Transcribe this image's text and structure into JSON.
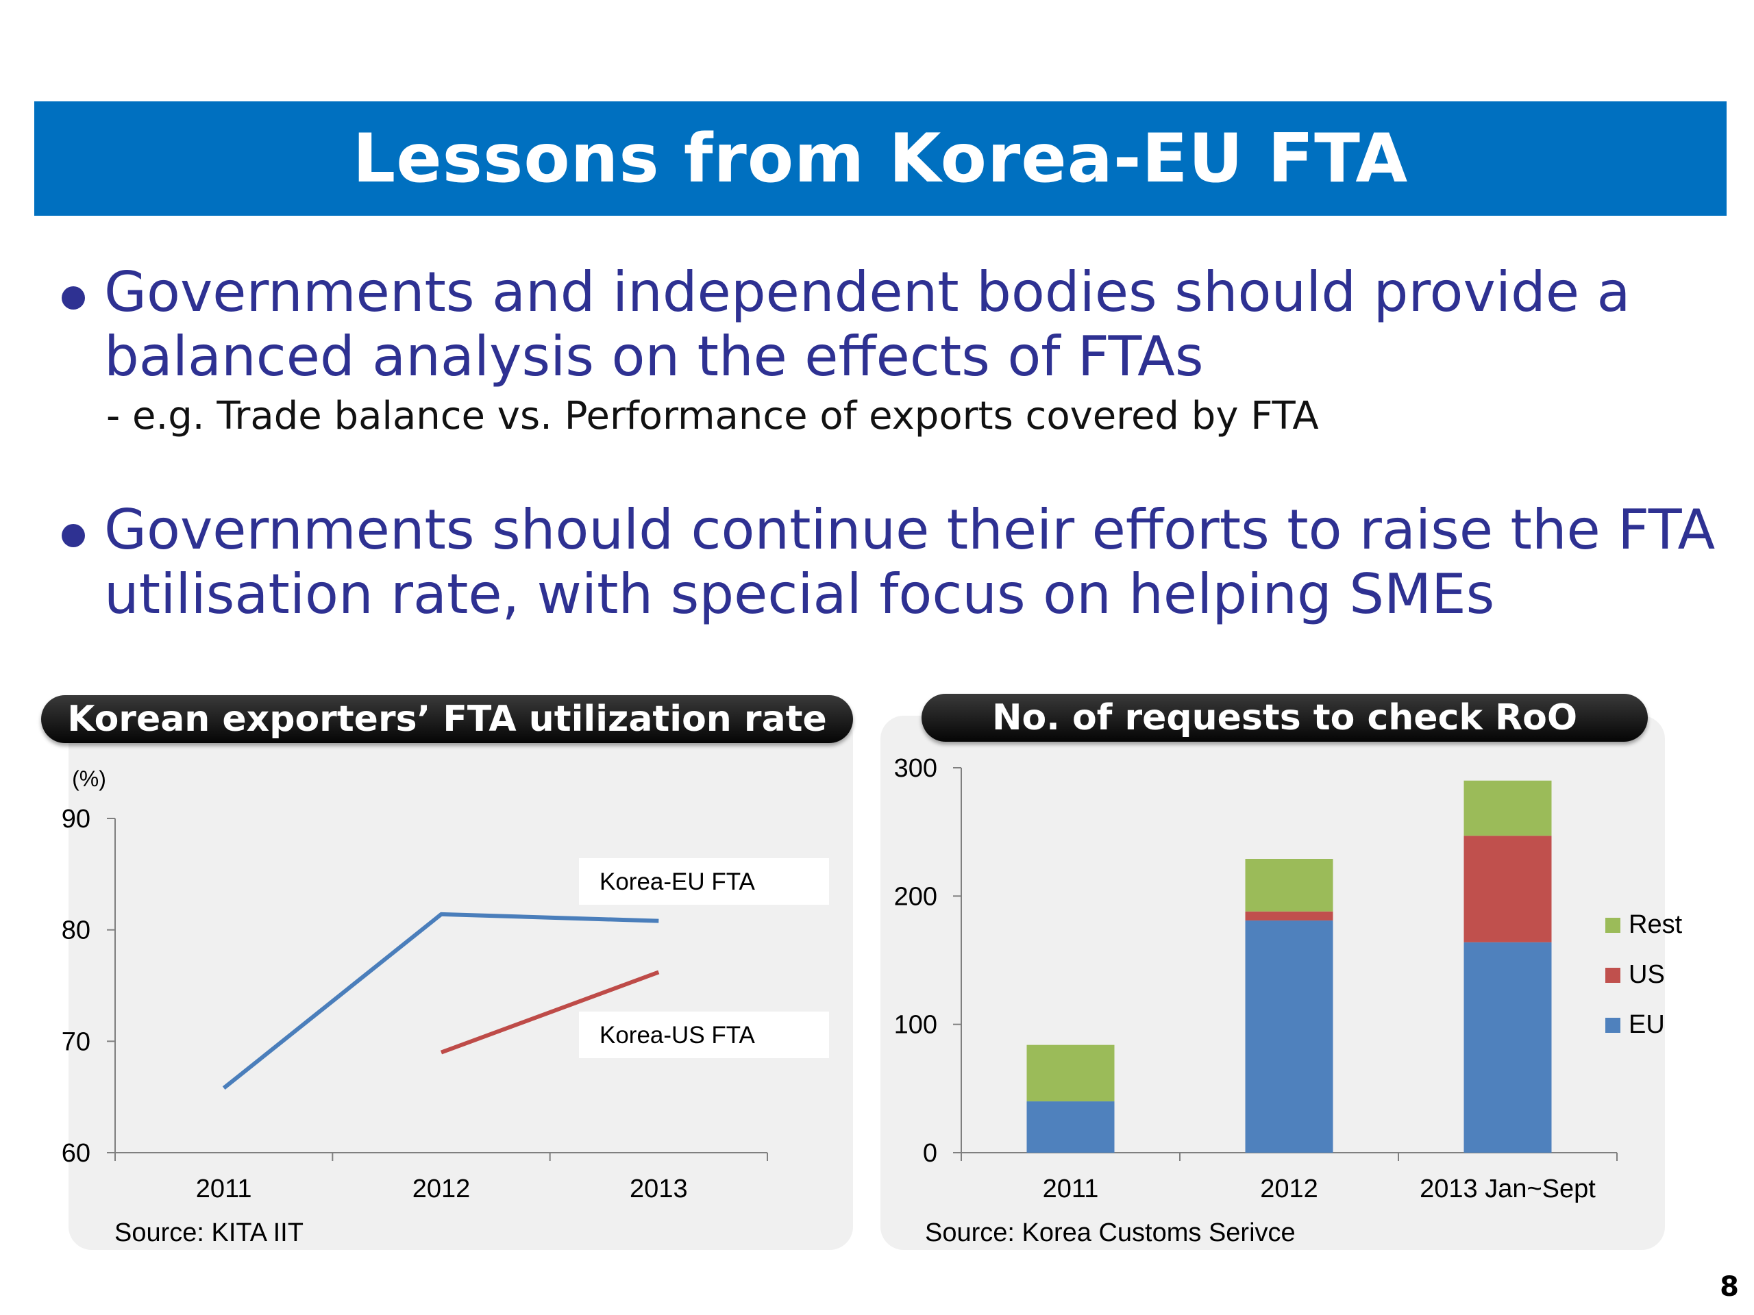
{
  "slide": {
    "title": "Lessons from Korea-EU FTA",
    "bullet1_line1": "Governments and independent bodies should provide a",
    "bullet1_line2": "balanced analysis on the effects of FTAs",
    "bullet1_sub": "- e.g. Trade balance vs. Performance of exports covered by FTA",
    "bullet2_line1": "Governments should continue their efforts to raise the FTA",
    "bullet2_line2": "utilisation rate, with special focus on helping SMEs",
    "page_number": "8"
  },
  "colors": {
    "title_bg": "#0070c0",
    "bullet_text": "#2e3192",
    "series_eu_line": "#4a7ebb",
    "series_us_line": "#be4b48",
    "bar_eu": "#4f81bd",
    "bar_us": "#c0504d",
    "bar_rest": "#9bbb59"
  },
  "chart_data": [
    {
      "type": "line",
      "title": "Korean exporters’ FTA utilization rate",
      "ylabel": "(%)",
      "categories": [
        "2011",
        "2012",
        "2013"
      ],
      "ylim": [
        60,
        90
      ],
      "yticks": [
        "60",
        "70",
        "80",
        "90"
      ],
      "series": [
        {
          "name": "Korea-EU FTA",
          "values": [
            65.8,
            81.4,
            80.8
          ]
        },
        {
          "name": "Korea-US FTA",
          "values": [
            null,
            69,
            76.2
          ]
        }
      ],
      "source": "Source: KITA IIT"
    },
    {
      "type": "bar",
      "stacked": true,
      "title": "No. of requests to check RoO",
      "categories": [
        "2011",
        "2012",
        "2013 Jan~Sept"
      ],
      "ylim": [
        0,
        300
      ],
      "yticks": [
        "0",
        "100",
        "200",
        "300"
      ],
      "series": [
        {
          "name": "EU",
          "values": [
            40,
            181,
            164
          ]
        },
        {
          "name": "US",
          "values": [
            0,
            7,
            83
          ]
        },
        {
          "name": "Rest",
          "values": [
            44,
            41,
            43
          ]
        }
      ],
      "legend": [
        "Rest",
        "US",
        "EU"
      ],
      "legend_position": "right",
      "source": "Source: Korea Customs Serivce"
    }
  ]
}
